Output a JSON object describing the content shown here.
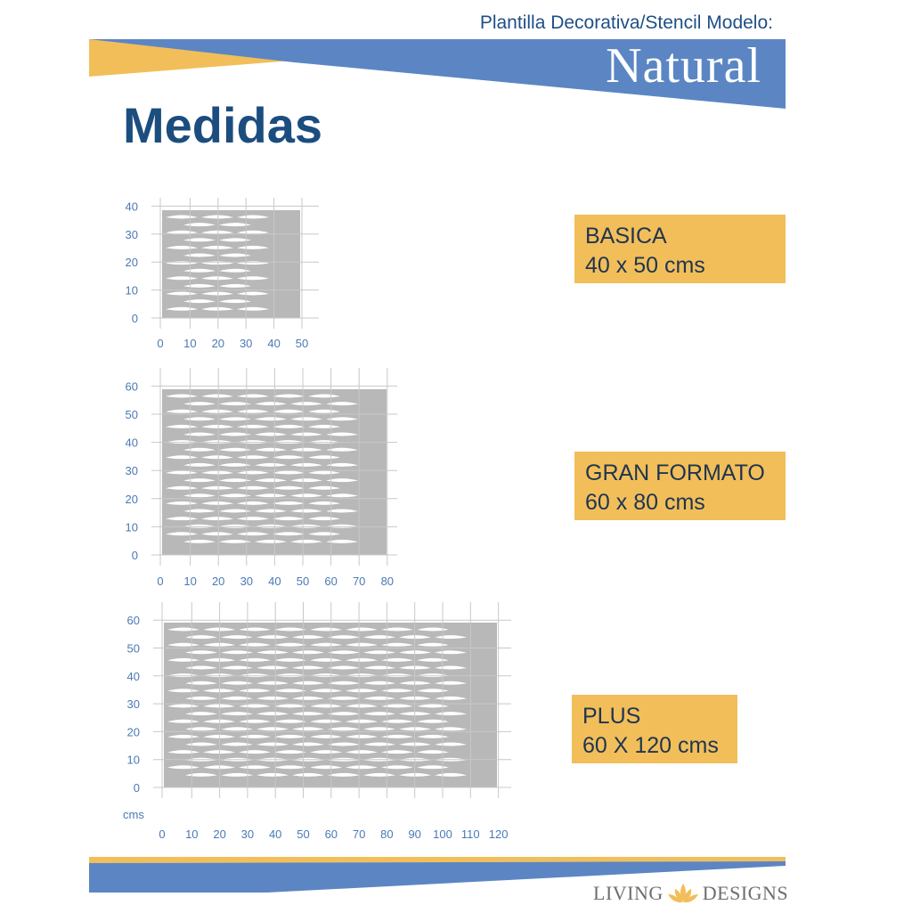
{
  "header": {
    "subtitle": "Plantilla Decorativa/Stencil Modelo:",
    "model_name": "Natural",
    "colors": {
      "blue": "#5b86c3",
      "gold": "#f2be5a"
    }
  },
  "heading": "Medidas",
  "unit_label": "cms",
  "stencils": [
    {
      "name": "BASICA",
      "size": "40 x 50 cms",
      "x_ticks": [
        "0",
        "10",
        "20",
        "30",
        "40",
        "50"
      ],
      "y_ticks": [
        "0",
        "10",
        "20",
        "30",
        "40"
      ],
      "width_cm": 50,
      "height_cm": 40
    },
    {
      "name": "GRAN FORMATO",
      "size": "60 x 80 cms",
      "x_ticks": [
        "0",
        "10",
        "20",
        "30",
        "40",
        "50",
        "60",
        "70",
        "80"
      ],
      "y_ticks": [
        "0",
        "10",
        "20",
        "30",
        "40",
        "50",
        "60"
      ],
      "width_cm": 80,
      "height_cm": 60
    },
    {
      "name": "PLUS",
      "size": "60 X 120 cms",
      "x_ticks": [
        "0",
        "10",
        "20",
        "30",
        "40",
        "50",
        "60",
        "70",
        "80",
        "90",
        "100",
        "110",
        "120"
      ],
      "y_ticks": [
        "0",
        "10",
        "20",
        "30",
        "40",
        "50",
        "60"
      ],
      "width_cm": 120,
      "height_cm": 60
    }
  ],
  "brand": {
    "left": "LIVING",
    "right": "DESIGNS",
    "logo_icon": "lotus-icon"
  },
  "colors": {
    "stencil_gray": "#b8b8b8",
    "grid": "#c8c8c8",
    "tick_text": "#4a79b5"
  }
}
